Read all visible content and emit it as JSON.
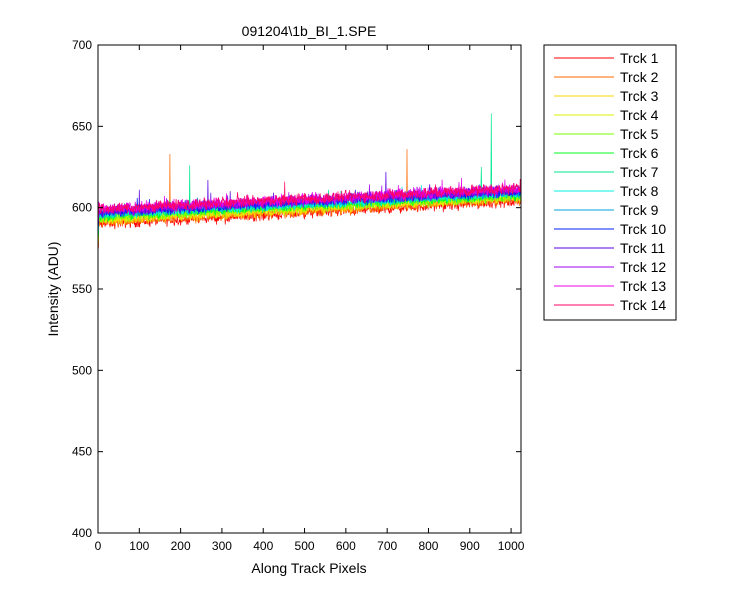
{
  "chart_data": {
    "type": "line",
    "title": "091204\\1b_BI_1.SPE",
    "xlabel": "Along Track Pixels",
    "ylabel": "Intensity (ADU)",
    "xlim": [
      0,
      1024
    ],
    "ylim": [
      400,
      700
    ],
    "xticks": [
      0,
      100,
      200,
      300,
      400,
      500,
      600,
      700,
      800,
      900,
      1000
    ],
    "yticks": [
      400,
      450,
      500,
      550,
      600,
      650,
      700
    ],
    "grid": false,
    "legend_position": "outside-right",
    "series": [
      {
        "name": "Trck 1",
        "color": "#ff0000",
        "start": 590,
        "end": 604,
        "noise": 2.4,
        "spikes": []
      },
      {
        "name": "Trck 2",
        "color": "#ff6a00",
        "start": 591,
        "end": 605,
        "noise": 2.4,
        "spikes": [
          [
            174,
            633
          ],
          [
            748,
            636
          ]
        ]
      },
      {
        "name": "Trck 3",
        "color": "#ffd400",
        "start": 592,
        "end": 606,
        "noise": 2.3,
        "spikes": []
      },
      {
        "name": "Trck 4",
        "color": "#d8f000",
        "start": 593,
        "end": 607,
        "noise": 2.3,
        "spikes": []
      },
      {
        "name": "Trck 5",
        "color": "#77ff00",
        "start": 594,
        "end": 607,
        "noise": 2.3,
        "spikes": []
      },
      {
        "name": "Trck 6",
        "color": "#00ff22",
        "start": 595,
        "end": 608,
        "noise": 2.3,
        "spikes": []
      },
      {
        "name": "Trck 7",
        "color": "#00e890",
        "start": 596,
        "end": 609,
        "noise": 2.3,
        "spikes": [
          [
            222,
            626
          ],
          [
            928,
            625
          ],
          [
            952,
            658
          ]
        ]
      },
      {
        "name": "Trck 8",
        "color": "#00f0e0",
        "start": 596,
        "end": 609,
        "noise": 2.3,
        "spikes": []
      },
      {
        "name": "Trck 9",
        "color": "#00a0e0",
        "start": 597,
        "end": 610,
        "noise": 2.3,
        "spikes": []
      },
      {
        "name": "Trck 10",
        "color": "#0020ff",
        "start": 597,
        "end": 610,
        "noise": 2.3,
        "spikes": []
      },
      {
        "name": "Trck 11",
        "color": "#5a00e0",
        "start": 598,
        "end": 611,
        "noise": 2.4,
        "spikes": [
          [
            100,
            611
          ],
          [
            266,
            617
          ],
          [
            697,
            622
          ]
        ]
      },
      {
        "name": "Trck 12",
        "color": "#a000f0",
        "start": 598,
        "end": 611,
        "noise": 2.4,
        "spikes": []
      },
      {
        "name": "Trck 13",
        "color": "#e800e8",
        "start": 599,
        "end": 612,
        "noise": 2.4,
        "spikes": []
      },
      {
        "name": "Trck 14",
        "color": "#ff0066",
        "start": 599,
        "end": 612,
        "noise": 2.6,
        "spikes": [
          [
            452,
            616
          ]
        ]
      }
    ]
  }
}
